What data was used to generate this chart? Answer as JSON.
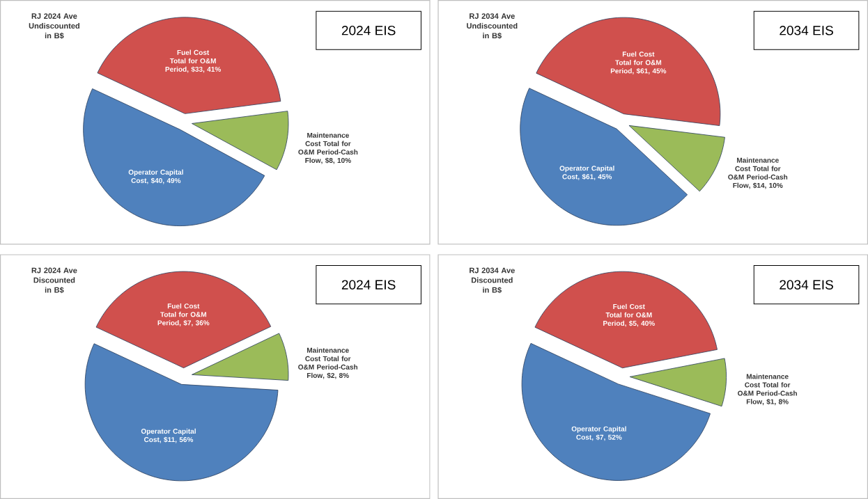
{
  "chart_data": [
    {
      "type": "pie",
      "title": "RJ 2024 Ave Undiscounted in B$",
      "annotations": [
        "2024 EIS"
      ],
      "categories": [
        "Fuel Cost Total for O&M Period",
        "Maintenance Cost Total for O&M Period-Cash Flow",
        "Operator Capital Cost"
      ],
      "values": [
        41,
        10,
        49
      ],
      "colors": [
        "#d0504d",
        "#9bbb59",
        "#4f81bd"
      ],
      "value_labels": [
        ", $33, 41%",
        ", $8, 10%",
        ", $40, 49%"
      ]
    },
    {
      "type": "pie",
      "title": "RJ 2034 Ave Undiscounted in B$",
      "annotations": [
        "2034 EIS"
      ],
      "categories": [
        "Fuel Cost Total for O&M Period",
        "Maintenance Cost Total for O&M Period-Cash Flow",
        "Operator Capital Cost"
      ],
      "values": [
        45,
        10,
        45
      ],
      "colors": [
        "#d0504d",
        "#9bbb59",
        "#4f81bd"
      ],
      "value_labels": [
        ", $61, 45%",
        ", $14, 10%",
        ", $61, 45%"
      ]
    },
    {
      "type": "pie",
      "title": "RJ 2024 Ave Discounted in B$",
      "annotations": [
        "2024 EIS"
      ],
      "categories": [
        "Fuel Cost Total for O&M Period",
        "Maintenance Cost Total for O&M Period-Cash Flow",
        "Operator Capital Cost"
      ],
      "values": [
        36,
        8,
        56
      ],
      "colors": [
        "#d0504d",
        "#9bbb59",
        "#4f81bd"
      ],
      "value_labels": [
        ", $7, 36%",
        ", $2, 8%",
        ", $11, 56%"
      ]
    },
    {
      "type": "pie",
      "title": "RJ 2034 Ave Discounted in B$",
      "annotations": [
        "2034 EIS"
      ],
      "categories": [
        "Fuel Cost Total for O&M Period",
        "Maintenance Cost Total for O&M Period-Cash Flow",
        "Operator Capital Cost"
      ],
      "values": [
        40,
        8,
        52
      ],
      "colors": [
        "#d0504d",
        "#9bbb59",
        "#4f81bd"
      ],
      "value_labels": [
        ", $5, 40%",
        ", $1, 8%",
        ", $7, 52%"
      ]
    }
  ]
}
